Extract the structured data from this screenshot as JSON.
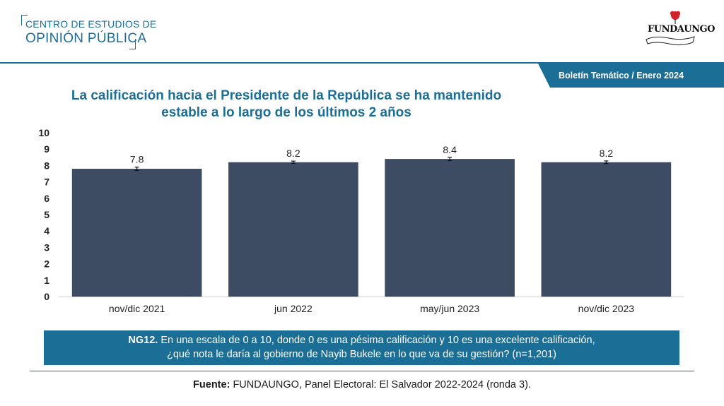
{
  "header": {
    "brand_line1": "CENTRO DE ESTUDIOS DE",
    "brand_line2": "OPINIÓN PÚBLICA",
    "partner_logo": "FUNDAUNGO",
    "ribbon": "Boletín Temático / Enero 2024"
  },
  "colors": {
    "accent": "#1b6f96",
    "bar": "#3d4b63",
    "rose": "#d1232a"
  },
  "chart_data": {
    "type": "bar",
    "title": "La calificación hacia el Presidente de la República se ha mantenido estable a lo largo de los últimos 2 años",
    "title_line1": "La calificación hacia el Presidente de la República se ha mantenido",
    "title_line2": "estable a lo largo de los últimos 2 años",
    "categories": [
      "nov/dic 2021",
      "jun 2022",
      "may/jun 2023",
      "nov/dic 2023"
    ],
    "values": [
      7.8,
      8.2,
      8.4,
      8.2
    ],
    "value_labels": [
      "7.8",
      "8.2",
      "8.4",
      "8.2"
    ],
    "error": [
      0.1,
      0.07,
      0.1,
      0.08
    ],
    "ylim": [
      0,
      10
    ],
    "yticks": [
      0,
      1,
      2,
      3,
      4,
      5,
      6,
      7,
      8,
      9,
      10
    ],
    "xlabel": "",
    "ylabel": "",
    "grid": false
  },
  "question": {
    "code": "NG12.",
    "line1": "En una escala de 0 a 10, donde 0 es una pésima calificación y 10 es una excelente calificación,",
    "line2": "¿qué nota le daría al gobierno de Nayib Bukele en lo que va de su gestión? (n=1,201)"
  },
  "source": {
    "label": "Fuente:",
    "text": "FUNDAUNGO, Panel Electoral: El Salvador 2022-2024 (ronda 3)."
  }
}
